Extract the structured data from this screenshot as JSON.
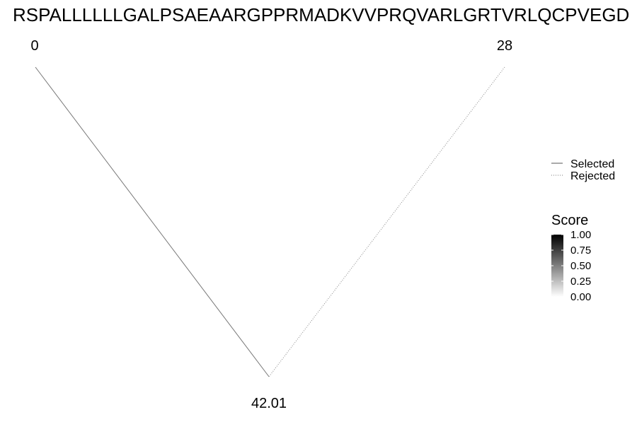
{
  "chart_data": {
    "type": "tree",
    "title": "RSPALLLLLLGALPSAEAARGPPRMADKVVPRQVARLGRTVRLQCPVEGD",
    "nodes": [
      {
        "id": "left",
        "label": "0"
      },
      {
        "id": "right",
        "label": "28"
      },
      {
        "id": "bottom",
        "label": "42.01"
      }
    ],
    "edges": [
      {
        "from": "left",
        "to": "bottom",
        "style": "selected",
        "score": 0.5
      },
      {
        "from": "right",
        "to": "bottom",
        "style": "rejected",
        "score": 0.5
      }
    ],
    "legend": {
      "line_types": [
        {
          "key": "selected",
          "label": "Selected"
        },
        {
          "key": "rejected",
          "label": "Rejected"
        }
      ],
      "score": {
        "title": "Score",
        "ticks": [
          "1.00",
          "0.75",
          "0.50",
          "0.25",
          "0.00"
        ],
        "color_high": "#000000",
        "color_low": "#ffffff"
      }
    },
    "legend_position": "right"
  }
}
